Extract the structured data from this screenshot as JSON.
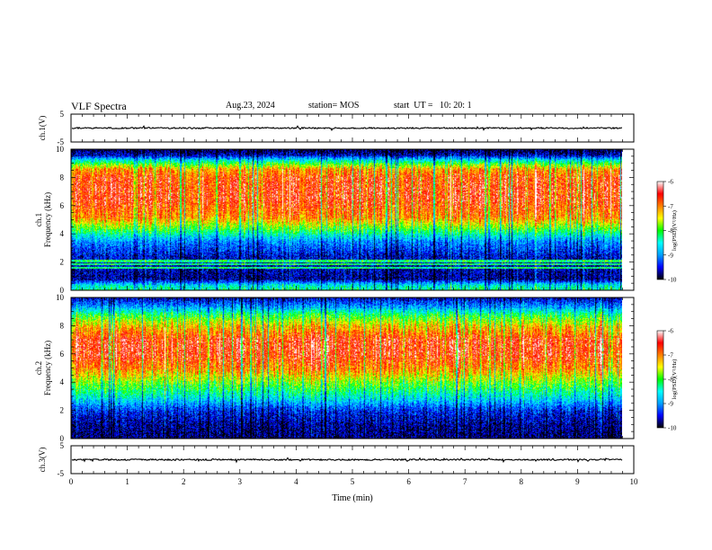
{
  "header": {
    "title": "VLF Spectra",
    "date": "Aug.23, 2024",
    "station": "station= MOS",
    "start_ut": "start  UT =   10: 20: 1"
  },
  "chart_data": [
    {
      "type": "line",
      "panel": "ch1-waveform",
      "ylabel": "ch.1(V)",
      "ylim": [
        -5,
        5
      ],
      "y_ticks": [
        "5",
        "-5"
      ],
      "x_range_min": [
        0,
        10
      ],
      "series": [
        {
          "approx_level_v": 0
        }
      ]
    },
    {
      "type": "heatmap",
      "panel": "ch1-spectrogram",
      "ylabel": "ch.1\nFrequency  (kHz)",
      "ylim_khz": [
        0,
        10
      ],
      "y_ticks": [
        "0",
        "2",
        "4",
        "6",
        "8",
        "10"
      ],
      "x_range_min": [
        0,
        10
      ],
      "data_end_min": 9.8,
      "colorbar": {
        "label": "log(PSD)(V²/Hz)",
        "range": [
          -10,
          -6
        ],
        "ticks": [
          "-6",
          "-7",
          "-8",
          "-9",
          "-10"
        ]
      },
      "frequency_profile": [
        {
          "khz": 0,
          "log_psd": -8.2
        },
        {
          "khz": 0.4,
          "log_psd": -8.6
        },
        {
          "khz": 0.8,
          "log_psd": -9.7
        },
        {
          "khz": 1.6,
          "log_psd": -9.6
        },
        {
          "khz": 2.5,
          "log_psd": -9.5
        },
        {
          "khz": 3.5,
          "log_psd": -9.0
        },
        {
          "khz": 4.4,
          "log_psd": -7.9
        },
        {
          "khz": 5.2,
          "log_psd": -7.0
        },
        {
          "khz": 6.5,
          "log_psd": -6.6
        },
        {
          "khz": 8.0,
          "log_psd": -6.7
        },
        {
          "khz": 8.6,
          "log_psd": -7.1
        },
        {
          "khz": 9.2,
          "log_psd": -8.4
        },
        {
          "khz": 9.6,
          "log_psd": -9.6
        },
        {
          "khz": 10,
          "log_psd": -9.9
        }
      ],
      "narrowband_lines_khz": [
        1.6,
        1.9,
        2.1
      ]
    },
    {
      "type": "heatmap",
      "panel": "ch2-spectrogram",
      "ylabel": "ch.2\nFrequency  (kHz)",
      "ylim_khz": [
        0,
        10
      ],
      "y_ticks": [
        "0",
        "2",
        "4",
        "6",
        "8",
        "10"
      ],
      "x_range_min": [
        0,
        10
      ],
      "data_end_min": 9.8,
      "colorbar": {
        "label": "log(PSD)(V²/Hz)",
        "range": [
          -10,
          -6
        ],
        "ticks": [
          "-6",
          "-7",
          "-8",
          "-9",
          "-10"
        ]
      },
      "frequency_profile": [
        {
          "khz": 0,
          "log_psd": -9.8
        },
        {
          "khz": 1.0,
          "log_psd": -9.7
        },
        {
          "khz": 2.0,
          "log_psd": -9.4
        },
        {
          "khz": 3.0,
          "log_psd": -8.5
        },
        {
          "khz": 4.0,
          "log_psd": -7.8
        },
        {
          "khz": 5.0,
          "log_psd": -7.0
        },
        {
          "khz": 6.0,
          "log_psd": -6.6
        },
        {
          "khz": 7.0,
          "log_psd": -6.6
        },
        {
          "khz": 8.0,
          "log_psd": -7.3
        },
        {
          "khz": 8.8,
          "log_psd": -8.1
        },
        {
          "khz": 9.4,
          "log_psd": -9.0
        },
        {
          "khz": 10,
          "log_psd": -9.6
        }
      ],
      "narrowband_lines_khz": []
    },
    {
      "type": "line",
      "panel": "ch3-waveform",
      "ylabel": "ch.3(V)",
      "ylim": [
        -5,
        5
      ],
      "y_ticks": [
        "5",
        "-5"
      ],
      "xlabel": "Time  (min)",
      "x_range_min": [
        0,
        10
      ],
      "x_ticks": [
        "0",
        "1",
        "2",
        "3",
        "4",
        "5",
        "6",
        "7",
        "8",
        "9",
        "10"
      ],
      "series": [
        {
          "approx_level_v": 0
        }
      ]
    }
  ],
  "colors": {
    "colormap": [
      "#000000",
      "#0000ff",
      "#00a0ff",
      "#00ffff",
      "#00ff00",
      "#ffff00",
      "#ff8000",
      "#ff0000",
      "#ffffff"
    ],
    "axis": "#000000",
    "background": "#ffffff"
  }
}
